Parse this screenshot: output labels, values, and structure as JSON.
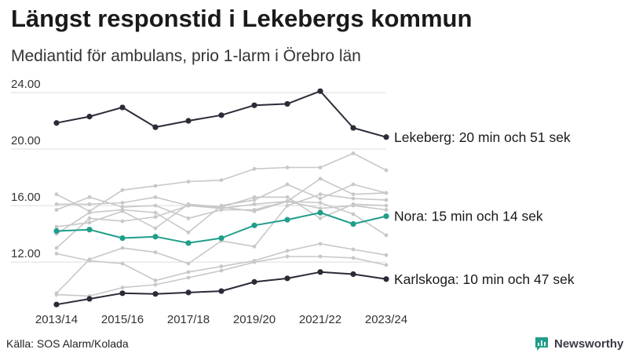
{
  "chart_data": {
    "type": "line",
    "title": "Längst responstid i Lekebergs kommun",
    "subtitle": "Mediantid för ambulans, prio 1-larm i Örebro län",
    "xlabel": "",
    "ylabel": "",
    "x": [
      "2013/14",
      "2014/15",
      "2015/16",
      "2016/17",
      "2017/18",
      "2018/19",
      "2019/20",
      "2020/21",
      "2021/22",
      "2022/23",
      "2023/24"
    ],
    "x_tick_labels": [
      "2013/14",
      "2015/16",
      "2017/18",
      "2019/20",
      "2021/22",
      "2023/24"
    ],
    "y_ticks": [
      "12.00",
      "16.00",
      "20.00",
      "24.00"
    ],
    "ylim": [
      8.9,
      25.0
    ],
    "highlighted": [
      {
        "name": "Lekeberg",
        "label": "Lekeberg: 20 min och 51 sek",
        "color": "#2b2b38",
        "values": [
          21.85,
          22.3,
          22.95,
          21.55,
          22.0,
          22.4,
          23.1,
          23.2,
          24.1,
          21.5,
          20.85
        ]
      },
      {
        "name": "Nora",
        "label": "Nora: 15 min och 14 sek",
        "color": "#1f9e8a",
        "values": [
          14.2,
          14.3,
          13.7,
          13.8,
          13.35,
          13.7,
          14.6,
          15.0,
          15.5,
          14.7,
          15.25
        ]
      },
      {
        "name": "Karlskoga",
        "label": "Karlskoga: 10 min och 47 sek",
        "color": "#2b2b38",
        "values": [
          9.0,
          9.4,
          9.8,
          9.75,
          9.85,
          9.95,
          10.6,
          10.85,
          11.3,
          11.15,
          10.8
        ]
      }
    ],
    "background_series": [
      {
        "values": [
          16.8,
          15.6,
          17.1,
          17.4,
          17.7,
          17.8,
          18.6,
          18.7,
          18.7,
          19.7,
          18.5
        ]
      },
      {
        "values": [
          16.1,
          16.1,
          16.2,
          16.6,
          16.0,
          15.8,
          16.1,
          16.3,
          17.9,
          16.8,
          16.9
        ]
      },
      {
        "values": [
          15.7,
          16.6,
          15.9,
          16.0,
          15.1,
          15.7,
          15.7,
          16.3,
          15.8,
          16.0,
          15.7
        ]
      },
      {
        "values": [
          14.5,
          14.8,
          15.6,
          14.4,
          16.1,
          15.9,
          16.6,
          16.6,
          15.1,
          16.1,
          16.0
        ]
      },
      {
        "values": [
          14.0,
          15.5,
          15.7,
          15.5,
          14.1,
          16.0,
          16.4,
          17.5,
          16.5,
          17.5,
          16.9
        ]
      },
      {
        "values": [
          13.0,
          15.1,
          14.9,
          15.2,
          16.0,
          15.9,
          15.6,
          16.3,
          16.2,
          15.4,
          13.9
        ]
      },
      {
        "values": [
          12.6,
          12.1,
          11.9,
          10.7,
          11.3,
          11.7,
          12.1,
          12.8,
          13.3,
          12.9,
          12.5
        ]
      },
      {
        "values": [
          9.8,
          12.2,
          13.0,
          12.7,
          11.9,
          13.5,
          13.1,
          16.0,
          16.8,
          16.5,
          16.4
        ]
      },
      {
        "values": [
          9.7,
          9.6,
          10.2,
          10.4,
          10.9,
          11.4,
          12.0,
          12.4,
          12.4,
          12.3,
          11.8
        ]
      }
    ]
  },
  "source": "Källa: SOS Alarm/Kolada",
  "brand": {
    "name": "Newsworthy",
    "icon": "newsworthy-logo-icon",
    "color": "#1f9e8a"
  }
}
